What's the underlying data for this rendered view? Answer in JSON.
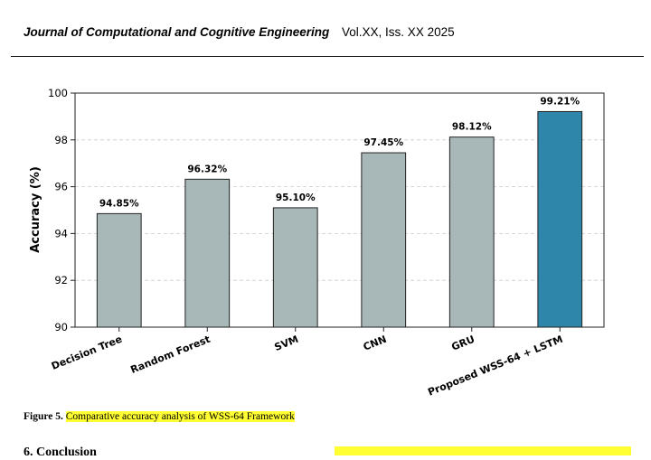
{
  "header": {
    "journal": "Journal of Computational and Cognitive Engineering",
    "volume": "Vol.XX,  Iss. XX  2025"
  },
  "chart_data": {
    "type": "bar",
    "title": "",
    "xlabel": "",
    "ylabel": "Accuracy (%)",
    "categories": [
      "Decision Tree",
      "Random Forest",
      "SVM",
      "CNN",
      "GRU",
      "Proposed WSS-64 + LSTM"
    ],
    "values": [
      94.85,
      96.32,
      95.1,
      97.45,
      98.12,
      99.21
    ],
    "value_labels": [
      "94.85%",
      "96.32%",
      "95.10%",
      "97.45%",
      "98.12%",
      "99.21%"
    ],
    "ylim": [
      90,
      100
    ],
    "yticks": [
      90,
      92,
      94,
      96,
      98,
      100
    ],
    "ytick_labels": [
      "90",
      "92",
      "94",
      "96",
      "98",
      "100"
    ],
    "grid": "horizontal dashed",
    "colors": {
      "baseline": "#a8b7b8",
      "proposed": "#2e86ab",
      "edge": "#222222",
      "grid": "#cccccc"
    },
    "highlight_index": 5
  },
  "caption": {
    "label": "Figure 5.",
    "text": "Comparative accuracy analysis of WSS-64 Framework"
  },
  "next_section": {
    "heading": "6. Conclusion"
  }
}
